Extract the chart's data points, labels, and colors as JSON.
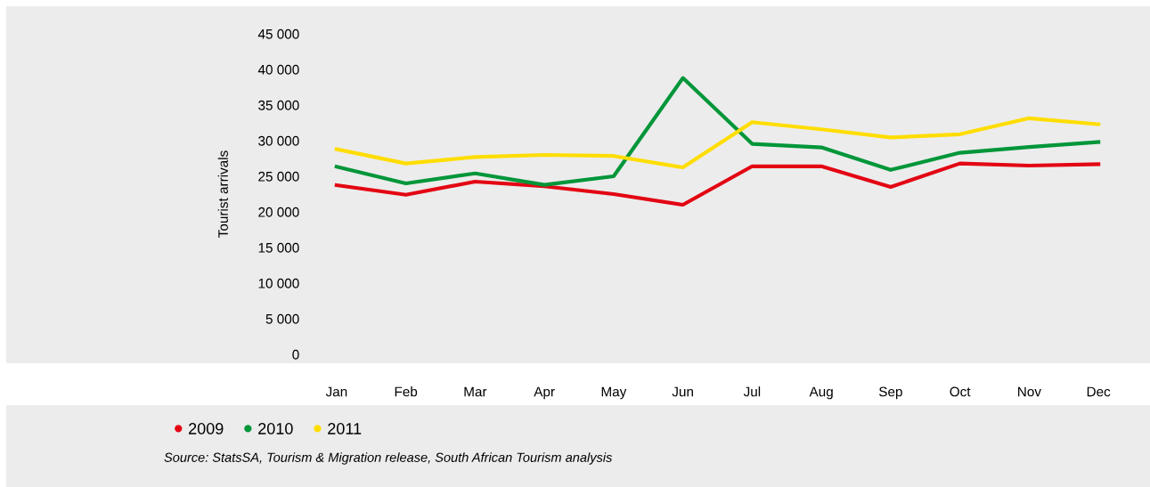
{
  "chart_data": {
    "type": "line",
    "ylabel": "Tourist arrivals",
    "categories": [
      "Jan",
      "Feb",
      "Mar",
      "Apr",
      "May",
      "Jun",
      "Jul",
      "Aug",
      "Sep",
      "Oct",
      "Nov",
      "Dec"
    ],
    "series": [
      {
        "name": "2009",
        "color": "#e30613",
        "values": [
          23750,
          22400,
          24250,
          23600,
          22500,
          21000,
          26400,
          26400,
          23500,
          26800,
          26500,
          26700
        ]
      },
      {
        "name": "2010",
        "color": "#009639",
        "values": [
          26350,
          24000,
          25400,
          23800,
          25000,
          38800,
          29550,
          29050,
          25900,
          28300,
          29100,
          29800
        ]
      },
      {
        "name": "2011",
        "color": "#ffdd00",
        "values": [
          28800,
          26800,
          27700,
          28000,
          27850,
          26250,
          32600,
          31600,
          30450,
          30900,
          33150,
          32300
        ]
      }
    ],
    "ylim": [
      0,
      45000
    ],
    "yticks": [
      {
        "value": 0,
        "label": "0"
      },
      {
        "value": 5000,
        "label": "5 000"
      },
      {
        "value": 10000,
        "label": "10 000"
      },
      {
        "value": 15000,
        "label": "15 000"
      },
      {
        "value": 20000,
        "label": "20 000"
      },
      {
        "value": 25000,
        "label": "25 000"
      },
      {
        "value": 30000,
        "label": "30 000"
      },
      {
        "value": 35000,
        "label": "35 000"
      },
      {
        "value": 40000,
        "label": "40 000"
      },
      {
        "value": 45000,
        "label": "45 000"
      }
    ],
    "legend": "bottom",
    "grid": false,
    "marker": "none",
    "line_style": "solid",
    "annotations": [
      "Source: StatsSA, Tourism & Migration release, South African Tourism analysis"
    ]
  }
}
